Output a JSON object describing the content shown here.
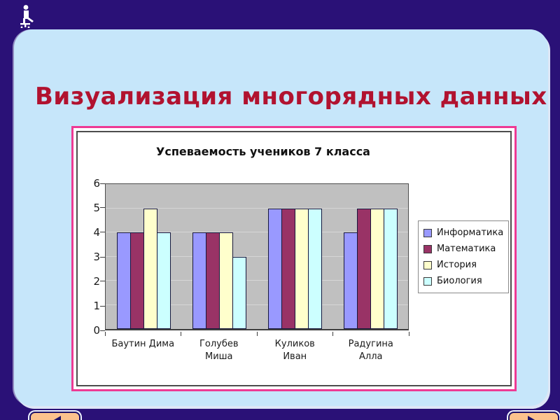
{
  "page": {
    "background_color": "#2a1177",
    "slide_color": "#c6e6fa",
    "presenter_icon": "person-on-chair-icon"
  },
  "header": {
    "title": "Визуализация многорядных данных",
    "title_color": "#b1122f"
  },
  "chart_frame": {
    "border_color": "#ee3a94"
  },
  "nav": {
    "prev_icon": "left-triangle",
    "next_icon": "right-triangle",
    "button_color": "#fcc28d"
  },
  "chart_data": {
    "type": "bar",
    "title": "Успеваемость учеников 7 класса",
    "categories": [
      "Баутин Дима",
      "Голубев\nМиша",
      "Куликов\nИван",
      "Радугина\nАлла"
    ],
    "series": [
      {
        "name": "Информатика",
        "color": "#9999ff",
        "values": [
          4,
          4,
          5,
          4
        ]
      },
      {
        "name": "Математика",
        "color": "#993366",
        "values": [
          4,
          4,
          5,
          5
        ]
      },
      {
        "name": "История",
        "color": "#ffffcc",
        "values": [
          5,
          4,
          5,
          5
        ]
      },
      {
        "name": "Биология",
        "color": "#ccffff",
        "values": [
          4,
          3,
          5,
          5
        ]
      }
    ],
    "ylim": [
      0,
      6
    ],
    "ytick_step": 1,
    "grid": true,
    "plot_bg": "#c0c0c0",
    "legend_position": "right"
  }
}
